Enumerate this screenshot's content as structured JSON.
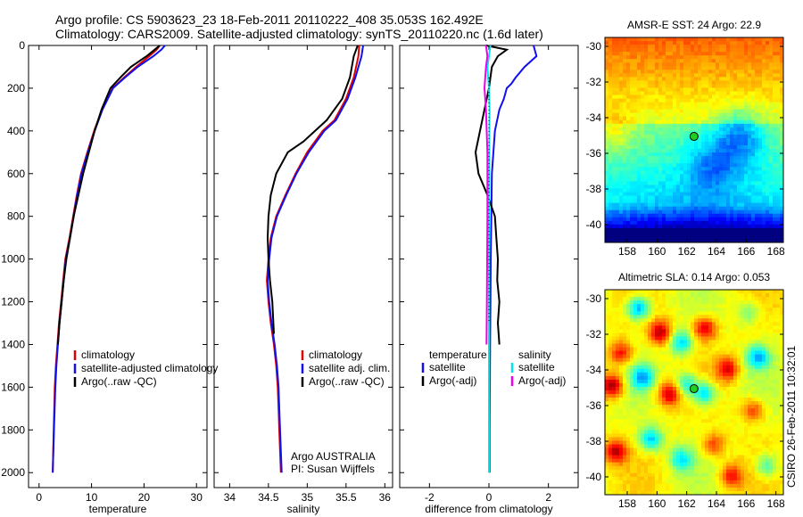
{
  "header": {
    "line1": "Argo profile: CS 5903623_23 18-Feb-2011 20110222_408 35.053S 162.492E",
    "line2": "Climatology: CARS2009. Satellite-adjusted climatology: synTS_20110220.nc (1.6d later)"
  },
  "colors": {
    "climatology": "#dd0000",
    "satellite": "#1010ee",
    "argo": "#000000",
    "sal_satellite": "#00e5ee",
    "sal_argo": "#ee00ee"
  },
  "chart_data": [
    {
      "type": "line",
      "xlabel": "temperature",
      "xlim": [
        -2,
        32
      ],
      "xticks": [
        0,
        10,
        20,
        30
      ],
      "ylim": [
        2070,
        0
      ],
      "yticks": [
        0,
        200,
        400,
        600,
        800,
        1000,
        1200,
        1400,
        1600,
        1800,
        2000
      ],
      "legend": {
        "items": [
          "climatology",
          "satellite-adjusted climatology",
          "Argo(..raw -QC)"
        ]
      },
      "series": [
        {
          "name": "climatology",
          "color": "#dd0000",
          "x": [
            23,
            22.4,
            21,
            18.5,
            16.2,
            14,
            12,
            10.5,
            9.2,
            8,
            7.2,
            6.5,
            5.8,
            5,
            4.6,
            4.2,
            3.8,
            3.5,
            3.2,
            3,
            2.8,
            2.6
          ],
          "y": [
            0,
            20,
            50,
            100,
            150,
            200,
            300,
            400,
            500,
            600,
            700,
            800,
            900,
            1000,
            1100,
            1200,
            1300,
            1400,
            1500,
            1600,
            1800,
            2000
          ]
        },
        {
          "name": "satellite-adjusted climatology",
          "color": "#1010ee",
          "x": [
            24,
            23.3,
            21.8,
            18.8,
            16.4,
            14.1,
            12.1,
            10.6,
            9.3,
            8.1,
            7.3,
            6.6,
            5.9,
            5.1,
            4.7,
            4.3,
            3.9,
            3.6,
            3.3,
            3.1,
            2.85,
            2.6
          ],
          "y": [
            0,
            20,
            50,
            100,
            150,
            200,
            300,
            400,
            500,
            600,
            700,
            800,
            900,
            1000,
            1100,
            1200,
            1300,
            1400,
            1500,
            1600,
            1800,
            2000
          ]
        },
        {
          "name": "Argo(..raw -QC)",
          "color": "#000000",
          "x": [
            23,
            22,
            20.5,
            17.5,
            15.5,
            13.6,
            11.9,
            10.6,
            9.5,
            8.4,
            7.5,
            6.6,
            5.9,
            5.2,
            4.7,
            4.3,
            3.9,
            3.6
          ],
          "y": [
            0,
            20,
            50,
            100,
            150,
            200,
            300,
            400,
            500,
            600,
            700,
            800,
            900,
            1000,
            1100,
            1200,
            1300,
            1400
          ]
        }
      ]
    },
    {
      "type": "line",
      "xlabel": "salinity",
      "xlim": [
        33.8,
        36.1
      ],
      "xticks": [
        34,
        34.5,
        35,
        35.5,
        36
      ],
      "ylim": [
        2070,
        0
      ],
      "legend": {
        "items": [
          "climatology",
          "satellite adj. clim.",
          "Argo(..raw -QC)"
        ]
      },
      "annotation": [
        "Argo AUSTRALIA",
        "PI: Susan Wijffels"
      ],
      "series": [
        {
          "name": "climatology",
          "color": "#dd0000",
          "x": [
            35.67,
            35.66,
            35.6,
            35.5,
            35.35,
            35.2,
            35.0,
            34.85,
            34.72,
            34.6,
            34.53,
            34.5,
            34.48,
            34.5,
            34.53,
            34.57,
            34.6,
            34.62,
            34.63,
            34.64,
            34.65,
            34.66
          ],
          "y": [
            0,
            50,
            150,
            250,
            350,
            400,
            500,
            600,
            700,
            800,
            900,
            1000,
            1100,
            1200,
            1300,
            1400,
            1500,
            1600,
            1700,
            1800,
            1900,
            2000
          ]
        },
        {
          "name": "satellite adj. clim.",
          "color": "#1010ee",
          "x": [
            35.72,
            35.7,
            35.62,
            35.52,
            35.37,
            35.22,
            35.02,
            34.86,
            34.73,
            34.61,
            34.54,
            34.51,
            34.49,
            34.51,
            34.54,
            34.58,
            34.61,
            34.63,
            34.64,
            34.65,
            34.66,
            34.67
          ],
          "y": [
            0,
            50,
            150,
            250,
            350,
            400,
            500,
            600,
            700,
            800,
            900,
            1000,
            1100,
            1200,
            1300,
            1400,
            1500,
            1600,
            1700,
            1800,
            1900,
            2000
          ]
        },
        {
          "name": "Argo(..raw -QC)",
          "color": "#000000",
          "x": [
            35.65,
            35.6,
            35.55,
            35.45,
            35.25,
            34.95,
            34.75,
            34.6,
            34.53,
            34.5,
            34.49,
            34.5,
            34.52,
            34.55,
            34.57
          ],
          "y": [
            0,
            50,
            150,
            250,
            350,
            450,
            500,
            600,
            700,
            800,
            900,
            1000,
            1100,
            1200,
            1350
          ]
        }
      ]
    },
    {
      "type": "line",
      "xlabel": "difference from climatology",
      "xlim": [
        -3,
        3
      ],
      "xticks": [
        -2,
        0,
        2
      ],
      "ylim": [
        2070,
        0
      ],
      "legend": {
        "temperature": [
          "temperature",
          "satellite",
          "Argo(-adj)"
        ],
        "salinity": [
          "salinity",
          "satellite",
          "Argo(-adj)"
        ]
      },
      "series": [
        {
          "name": "temperature satellite",
          "color": "#1010ee",
          "x": [
            1.5,
            1.6,
            1.2,
            0.9,
            0.75,
            0.6,
            0.5,
            0.35,
            0.2,
            0.15,
            0.1,
            0.08,
            0.06,
            0.05,
            0.04,
            0.03,
            0.02,
            0.02
          ],
          "y": [
            0,
            50,
            100,
            150,
            180,
            200,
            250,
            300,
            400,
            500,
            600,
            800,
            1000,
            1200,
            1400,
            1600,
            1800,
            2000
          ]
        },
        {
          "name": "temperature Argo(-adj)",
          "color": "#000000",
          "x": [
            -0.1,
            0.6,
            0.3,
            0.1,
            0.0,
            -0.3,
            -0.45,
            -0.35,
            -0.05,
            0.2,
            0.25,
            0.3,
            0.28,
            0.35,
            0.3,
            0.35
          ],
          "y": [
            0,
            20,
            50,
            100,
            200,
            400,
            500,
            600,
            700,
            800,
            900,
            1000,
            1100,
            1200,
            1300,
            1400
          ]
        },
        {
          "name": "salinity satellite",
          "color": "#00e5ee",
          "x": [
            0.05,
            0.0,
            -0.05,
            0.0,
            0.02,
            0.01,
            0.0,
            0.0,
            0.0,
            0.0,
            0.0,
            0.0
          ],
          "y": [
            0,
            50,
            100,
            200,
            300,
            500,
            800,
            1000,
            1400,
            1600,
            1800,
            2000
          ]
        },
        {
          "name": "salinity Argo(-adj)",
          "color": "#ee00ee",
          "x": [
            -0.1,
            -0.05,
            -0.1,
            -0.15,
            -0.1,
            -0.05,
            -0.05,
            -0.06,
            -0.07,
            -0.08
          ],
          "y": [
            0,
            50,
            100,
            200,
            300,
            500,
            800,
            1000,
            1200,
            1400
          ]
        }
      ]
    },
    {
      "type": "heatmap",
      "title": "AMSR-E SST: 24 Argo: 22.9",
      "xlim": [
        156.5,
        168.5
      ],
      "xticks": [
        158,
        160,
        162,
        164,
        166,
        168
      ],
      "ylim": [
        -41,
        -29.5
      ],
      "yticks": [
        -30,
        -32,
        -34,
        -36,
        -38,
        -40
      ],
      "marker": {
        "lon": 162.492,
        "lat": -35.053
      }
    },
    {
      "type": "heatmap",
      "title": "Altimetric SLA: 0.14 Argo: 0.053",
      "xlim": [
        156.5,
        168.5
      ],
      "xticks": [
        158,
        160,
        162,
        164,
        166,
        168
      ],
      "ylim": [
        -41,
        -29.5
      ],
      "yticks": [
        -30,
        -32,
        -34,
        -36,
        -38,
        -40
      ],
      "marker": {
        "lon": 162.492,
        "lat": -35.053
      }
    }
  ],
  "stamp": "CSIRO 26-Feb-2011 10:32:01"
}
